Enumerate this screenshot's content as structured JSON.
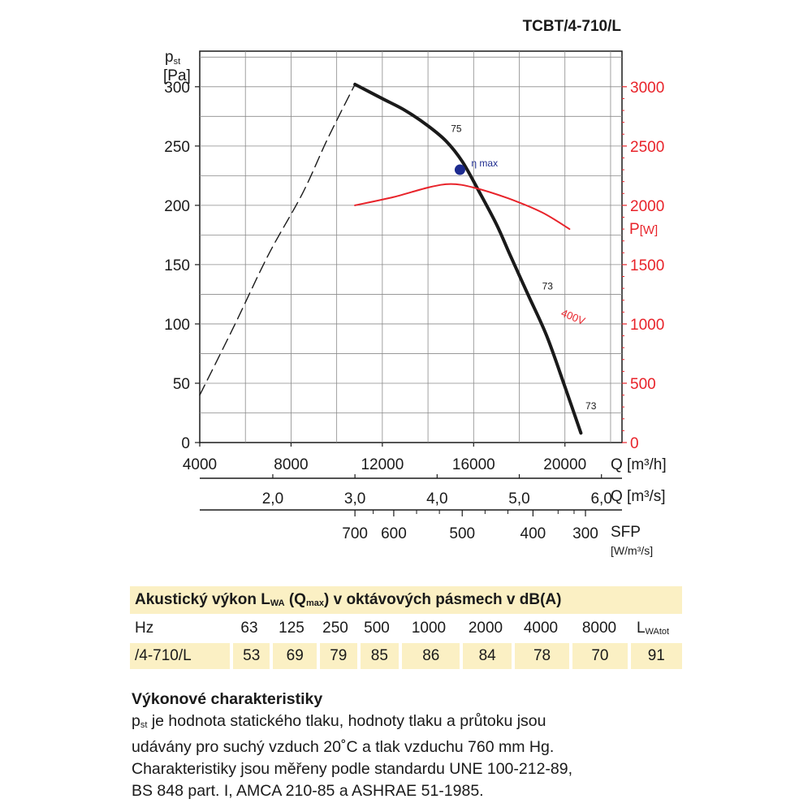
{
  "chart_data": {
    "type": "line",
    "title": "TCBT/4-710/L",
    "y_left": {
      "label": "p",
      "label_sub": "st",
      "unit": "[Pa]",
      "ylim": [
        0,
        330
      ],
      "ticks": [
        "0",
        "50",
        "100",
        "150",
        "200",
        "250",
        "300"
      ]
    },
    "y_right": {
      "label": "P",
      "unit": "[W]",
      "ylim": [
        0,
        3000
      ],
      "ticks": [
        "0",
        "500",
        "1000",
        "1500",
        "2000",
        "2500",
        "3000"
      ],
      "color": "#e8232a"
    },
    "x_axes": [
      {
        "label": "Q [m³/h]",
        "ticks": [
          "4000",
          "8000",
          "12000",
          "16000",
          "20000"
        ]
      },
      {
        "label": "Q [m³/s]",
        "ticks": [
          "2,0",
          "3,0",
          "4,0",
          "5,0",
          "6,0"
        ]
      },
      {
        "label": "SFP",
        "unit": "[W/m³/s]",
        "ticks": [
          "700",
          "600",
          "500",
          "400",
          "300"
        ]
      }
    ],
    "xlim": [
      4000,
      22500
    ],
    "series": [
      {
        "style": "solid",
        "color": "#1a1a1a",
        "x": [
          10800,
          12000,
          13000,
          14000,
          14800,
          15500,
          16200,
          17000,
          17600,
          18400,
          19200,
          20000,
          20700
        ],
        "y": [
          302,
          290,
          280,
          267,
          254,
          237,
          213,
          184,
          158,
          124,
          90,
          47,
          8
        ]
      },
      {
        "style": "dashed",
        "color": "#1a1a1a",
        "x": [
          4000,
          5500,
          7000,
          8500,
          9600,
          10800
        ],
        "y": [
          40,
          98,
          158,
          210,
          256,
          302
        ]
      },
      {
        "name": "400V",
        "axis": "right",
        "color": "#e8232a",
        "x": [
          10800,
          12500,
          14000,
          15000,
          16000,
          17500,
          19000,
          20200
        ],
        "y": [
          2000,
          2070,
          2150,
          2180,
          2150,
          2060,
          1940,
          1800
        ]
      }
    ],
    "annotations": [
      {
        "text": "75",
        "x": 15000,
        "y": 262
      },
      {
        "text": "73",
        "x": 19000,
        "y": 129
      },
      {
        "text": "73",
        "x": 20900,
        "y": 28
      },
      {
        "text": "400V",
        "x": 19800,
        "y": 107,
        "color": "#e8232a"
      }
    ],
    "eta_max": {
      "label": "η max",
      "x": 15400,
      "y": 230,
      "color": "#1d2b8f"
    }
  },
  "acoustic": {
    "title_pre": "Akustický výkon L",
    "title_sub1": "WA",
    "title_mid": " (Q",
    "title_sub2": "max",
    "title_post": ") v oktávových pásmech v dB(A)",
    "hz_label": "Hz",
    "bands": [
      "63",
      "125",
      "250",
      "500",
      "1000",
      "2000",
      "4000",
      "8000"
    ],
    "total_label": "L",
    "total_sub": "WAtot",
    "row_label": "/4-710/L",
    "values": [
      "53",
      "69",
      "79",
      "85",
      "86",
      "84",
      "78",
      "70",
      "91"
    ]
  },
  "performance": {
    "heading": "Výkonové charakteristiky",
    "p_symbol": "p",
    "p_sub": "st",
    "line1": " je hodnota statického tlaku, hodnoty tlaku a průtoku jsou",
    "line2": "udávány pro suchý vzduch 20˚C a tlak vzduchu 760 mm Hg.",
    "line3": "Charakteristiky jsou měřeny podle standardu UNE 100-212-89,",
    "line4": "BS 848 part. I, AMCA 210-85 a ASHRAE 51-1985."
  }
}
